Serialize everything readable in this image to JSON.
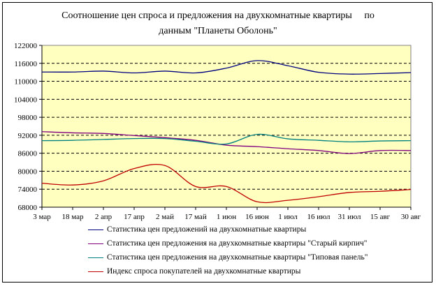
{
  "chart_data": {
    "type": "line",
    "title_lines": [
      "Соотношение цен спроса и предложения на двухкомнатные квартиры     по",
      "данным \"Планеты Оболонь\""
    ],
    "categories": [
      "3 мар",
      "18 мар",
      "2 апр",
      "17 апр",
      "2 май",
      "17 май",
      "1 июн",
      "16 июн",
      "1 июл",
      "16 июл",
      "31 июл",
      "15 авг",
      "30 авг"
    ],
    "ylim": [
      68000,
      122000
    ],
    "yticks": [
      "68000",
      "74000",
      "80000",
      "86000",
      "92000",
      "98000",
      "104000",
      "110000",
      "116000",
      "122000"
    ],
    "grid": "horizontal dashed",
    "plot_background": "#ffffc0",
    "legend_position": "bottom",
    "series": [
      {
        "name": "Статистика цен предложений на двухкомнатные квартиры",
        "color": "#000080",
        "values": [
          113100,
          113100,
          113400,
          112800,
          113400,
          112800,
          114400,
          116900,
          115200,
          113000,
          112400,
          112600,
          112900
        ]
      },
      {
        "name": "Статистика цен предложения на двухкомнатные квартиры \"Старый кирпич\"",
        "color": "#800080",
        "values": [
          93200,
          92800,
          92600,
          91900,
          91200,
          90300,
          88700,
          88200,
          87500,
          86900,
          85900,
          86900,
          86900
        ]
      },
      {
        "name": "Статистика цен предложения на двухкомнатные квартиры \"Типовая панель\"",
        "color": "#008080",
        "values": [
          90200,
          90300,
          90600,
          90900,
          90900,
          90000,
          89100,
          92300,
          90800,
          90300,
          89800,
          90100,
          90200
        ]
      },
      {
        "name": "Индекс спроса покупателей на двухкомнатные квартиры",
        "color": "#c00000",
        "values": [
          76000,
          75400,
          76800,
          80900,
          81900,
          74900,
          74900,
          69800,
          70300,
          71500,
          72900,
          73300,
          73900
        ]
      }
    ]
  }
}
